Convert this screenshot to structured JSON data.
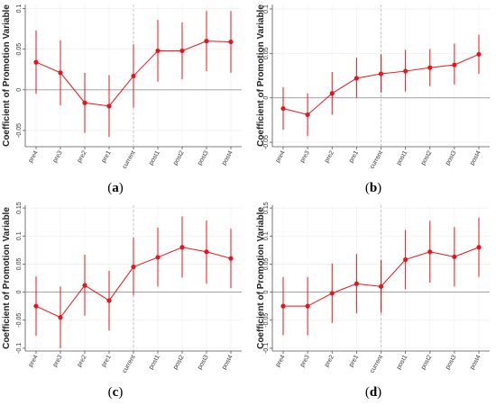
{
  "figure": {
    "panels": [
      {
        "caption": "a",
        "chart_data": {
          "type": "line",
          "ylabel": "Coefficient of Promotion Variable",
          "xlabel": "",
          "categories": [
            "pre4",
            "pre3",
            "pre2",
            "pre1",
            "current",
            "post1",
            "post2",
            "post3",
            "post4"
          ],
          "ylim": [
            -0.07,
            0.105
          ],
          "yticks": [
            -0.05,
            0,
            0.05,
            0.1
          ],
          "ytick_labels": [
            "-0.05",
            "0",
            "0.05",
            "0.1"
          ],
          "reference_line": {
            "axis": "y",
            "value": 0
          },
          "vline_category": "current",
          "series": [
            {
              "values": [
                0.034,
                0.021,
                -0.016,
                -0.02,
                0.017,
                0.048,
                0.048,
                0.06,
                0.059
              ],
              "ci_low": [
                -0.005,
                -0.019,
                -0.053,
                -0.058,
                -0.022,
                0.01,
                0.013,
                0.023,
                0.021
              ],
              "ci_high": [
                0.073,
                0.061,
                0.021,
                0.018,
                0.056,
                0.086,
                0.083,
                0.097,
                0.097
              ],
              "color": "#e8141c"
            }
          ]
        }
      },
      {
        "caption": "b",
        "chart_data": {
          "type": "line",
          "ylabel": "Coefficient of Promotion Variable",
          "xlabel": "",
          "categories": [
            "pre4",
            "pre3",
            "pre2",
            "pre1",
            "current",
            "post1",
            "post2",
            "post3",
            "post4"
          ],
          "ylim": [
            -0.055,
            0.105
          ],
          "yticks": [
            -0.05,
            0,
            0.05,
            0.1
          ],
          "ytick_labels": [
            "-0.05",
            "0",
            "0.05",
            "0.1"
          ],
          "reference_line": {
            "axis": "y",
            "value": 0
          },
          "vline_category": "current",
          "series": [
            {
              "values": [
                -0.012,
                -0.019,
                0.005,
                0.022,
                0.027,
                0.03,
                0.034,
                0.037,
                0.049
              ],
              "ci_low": [
                -0.036,
                -0.043,
                -0.019,
                0.0,
                0.006,
                0.007,
                0.013,
                0.015,
                0.027
              ],
              "ci_high": [
                0.012,
                0.005,
                0.029,
                0.045,
                0.049,
                0.054,
                0.055,
                0.061,
                0.071
              ],
              "color": "#e8141c"
            }
          ]
        }
      },
      {
        "caption": "c",
        "chart_data": {
          "type": "line",
          "ylabel": "Coefficient of Promotion Variable",
          "xlabel": "",
          "categories": [
            "pre4",
            "pre3",
            "pre2",
            "pre1",
            "current",
            "post1",
            "post2",
            "post3",
            "post4"
          ],
          "ylim": [
            -0.105,
            0.155
          ],
          "yticks": [
            -0.1,
            -0.05,
            0,
            0.05,
            0.1,
            0.15
          ],
          "ytick_labels": [
            "-0.1",
            "-0.05",
            "0",
            "0.05",
            "0.1",
            "0.15"
          ],
          "reference_line": {
            "axis": "y",
            "value": 0
          },
          "vline_category": "current",
          "series": [
            {
              "values": [
                -0.025,
                -0.045,
                0.012,
                -0.015,
                0.045,
                0.062,
                0.08,
                0.072,
                0.06
              ],
              "ci_low": [
                -0.078,
                -0.1,
                -0.042,
                -0.068,
                -0.006,
                0.01,
                0.026,
                0.015,
                0.007
              ],
              "ci_high": [
                0.028,
                0.01,
                0.067,
                0.038,
                0.097,
                0.115,
                0.135,
                0.128,
                0.113
              ],
              "color": "#e8141c"
            }
          ]
        }
      },
      {
        "caption": "d",
        "chart_data": {
          "type": "line",
          "ylabel": "Coefficient of Promotion Variable",
          "xlabel": "",
          "categories": [
            "pre4",
            "pre3",
            "pre2",
            "pre1",
            "current",
            "post1",
            "post2",
            "post3",
            "post4"
          ],
          "ylim": [
            -0.105,
            0.155
          ],
          "yticks": [
            -0.1,
            -0.05,
            0,
            0.05,
            0.1,
            0.15
          ],
          "ytick_labels": [
            "-0.1",
            "-0.05",
            "0",
            "0.05",
            "0.1",
            "0.15"
          ],
          "reference_line": {
            "axis": "y",
            "value": 0
          },
          "vline_category": "current",
          "series": [
            {
              "values": [
                -0.025,
                -0.025,
                -0.002,
                0.015,
                0.01,
                0.058,
                0.072,
                0.063,
                0.08
              ],
              "ci_low": [
                -0.077,
                -0.077,
                -0.055,
                -0.038,
                -0.037,
                0.005,
                0.017,
                0.01,
                0.027
              ],
              "ci_high": [
                0.027,
                0.027,
                0.051,
                0.068,
                0.057,
                0.111,
                0.127,
                0.116,
                0.133
              ],
              "color": "#e8141c"
            }
          ]
        }
      }
    ]
  }
}
